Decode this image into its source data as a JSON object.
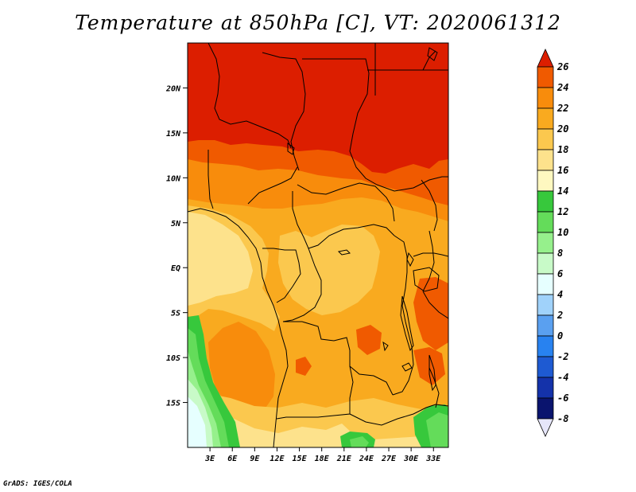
{
  "title": "Temperature at 850hPa [C], VT: 2020061312",
  "credit": "GrADS: IGES/COLA",
  "map": {
    "lon_range": [
      0,
      35
    ],
    "lat_range": [
      -20,
      25
    ],
    "lat_labels": [
      "20N",
      "15N",
      "10N",
      "5N",
      "EQ",
      "5S",
      "10S",
      "15S"
    ],
    "lat_values": [
      20,
      15,
      10,
      5,
      0,
      -5,
      -10,
      -15
    ],
    "lon_labels": [
      "3E",
      "6E",
      "9E",
      "12E",
      "15E",
      "18E",
      "21E",
      "24E",
      "27E",
      "30E",
      "33E"
    ],
    "lon_values": [
      3,
      6,
      9,
      12,
      15,
      18,
      21,
      24,
      27,
      30,
      33
    ]
  },
  "colorbar": {
    "levels": [
      "26",
      "24",
      "22",
      "20",
      "18",
      "16",
      "14",
      "12",
      "10",
      "8",
      "6",
      "4",
      "2",
      "0",
      "-2",
      "-4",
      "-6",
      "-8"
    ],
    "colors": [
      "#dc1e00",
      "#f05a00",
      "#f88c0c",
      "#f9aa1f",
      "#fbc84e",
      "#fde28c",
      "#fef8c0",
      "#37c83c",
      "#64dc5a",
      "#96f08c",
      "#c8fac8",
      "#e6ffff",
      "#a0d2fa",
      "#5aa0f0",
      "#2882f0",
      "#1e5ad2",
      "#1432aa",
      "#0a146e",
      "#e6e6fa"
    ]
  }
}
